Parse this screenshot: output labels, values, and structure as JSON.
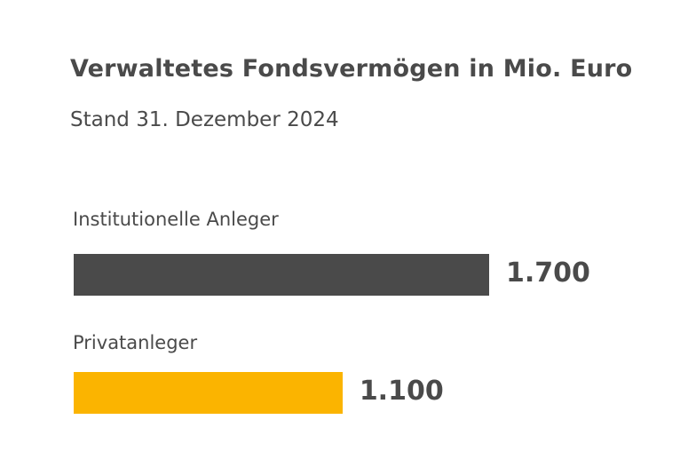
{
  "chart_data": {
    "type": "bar",
    "orientation": "horizontal",
    "title": "Verwaltetes Fondsvermögen in Mio. Euro",
    "subtitle": "Stand 31. Dezember 2024",
    "categories": [
      "Institutionelle Anleger",
      "Privatanleger"
    ],
    "values": [
      1700,
      1100
    ],
    "value_labels": [
      "1.700",
      "1.100"
    ],
    "colors": [
      "#4a4a4a",
      "#fbb400"
    ],
    "grid": false,
    "legend": "none"
  }
}
